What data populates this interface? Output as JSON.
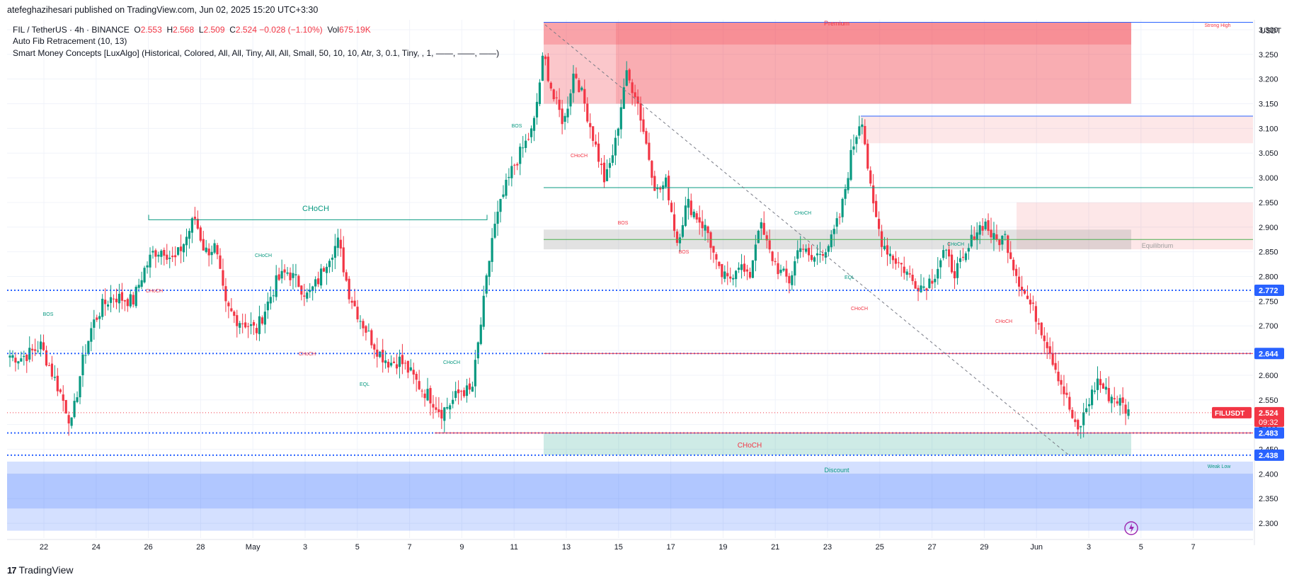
{
  "header": {
    "publisher": "atefeghazihesari published on TradingView.com, Jun 02, 2025 15:20 UTC+3:30",
    "symbol": "FIL / TetherUS · 4h · BINANCE",
    "o_label": "O",
    "o": "2.553",
    "h_label": "H",
    "h": "2.568",
    "l_label": "L",
    "l": "2.509",
    "c_label": "C",
    "c": "2.524",
    "change": "−0.028 (−1.10%)",
    "vol_label": "Vol",
    "vol": "675.19K",
    "indicator1": "Auto Fib Retracement (10, 13)",
    "indicator2": "Smart Money Concepts [LuxAlgo] (Historical, Colored, All, All, Tiny, All, All, Small, 50, 10, 10, Atr, 3, 0.1, Tiny, , 1, ——, ——, ——)"
  },
  "brand": {
    "logo": "17",
    "name": "TradingView"
  },
  "colors": {
    "bull": "#089981",
    "bear": "#f23645",
    "blue": "#2962ff",
    "premium": "#f23645",
    "discount": "#089981",
    "weakLowZone": "#2962ff"
  },
  "chart_data": {
    "type": "candlestick",
    "currency": "USDT",
    "y_range": [
      2.27,
      3.32
    ],
    "y_ticks": [
      "3.300",
      "3.250",
      "3.200",
      "3.150",
      "3.100",
      "3.050",
      "3.000",
      "2.950",
      "2.900",
      "2.850",
      "2.800",
      "2.750",
      "2.700",
      "2.650",
      "2.600",
      "2.550",
      "2.500",
      "2.450",
      "2.400",
      "2.350",
      "2.300"
    ],
    "x_ticks": [
      "22",
      "24",
      "26",
      "28",
      "May",
      "3",
      "5",
      "7",
      "9",
      "11",
      "13",
      "15",
      "17",
      "19",
      "21",
      "23",
      "25",
      "27",
      "29",
      "Jun",
      "3",
      "5",
      "7"
    ],
    "bars_per_day": 6,
    "price_labels": [
      {
        "label": "2.772",
        "value": 2.772
      },
      {
        "label": "2.644",
        "value": 2.644
      },
      {
        "label": "2.524",
        "value": 2.524,
        "sub": "09:32",
        "symbol": "FILUSDT"
      },
      {
        "label": "2.483",
        "value": 2.483
      },
      {
        "label": "2.438",
        "value": 2.438
      }
    ],
    "zone_labels": [
      "Premium",
      "Discount",
      "Strong High",
      "Weak Low",
      "Equilibrium"
    ],
    "structure_labels": [
      "CHoCH",
      "CHoCH",
      "CHoCH",
      "CHoCH",
      "CHoCH",
      "CHoCH",
      "CHoCH",
      "CHoCH",
      "CHoCH",
      "CHoCH",
      "BOS",
      "BOS",
      "BOS",
      "BOS",
      "EQL",
      "EQL"
    ],
    "series_anchors": [
      [
        2.64,
        2.63,
        2.65,
        2.68,
        2.62,
        2.55,
        2.48,
        2.6,
        2.68,
        2.72,
        2.77,
        2.76,
        2.74,
        2.8,
        2.84,
        2.86,
        2.84,
        2.88,
        2.93,
        2.84,
        2.87,
        2.75,
        2.72,
        2.7,
        2.68,
        2.73,
        2.78,
        2.8,
        2.78,
        2.75,
        2.78,
        2.85,
        2.88,
        2.78,
        2.73,
        2.69,
        2.64,
        2.62,
        2.63,
        2.61,
        2.58,
        2.55,
        2.52,
        2.55,
        2.58,
        2.56,
        2.7,
        2.86,
        2.95,
        3.02,
        3.05,
        3.08,
        3.26,
        3.17,
        3.1,
        3.23,
        3.16,
        3.08,
        2.98,
        3.08,
        3.22,
        3.18,
        3.08,
        2.98,
        3.0,
        2.88,
        2.96,
        2.93,
        2.9,
        2.82,
        2.8,
        2.84,
        2.8,
        2.92,
        2.86,
        2.82,
        2.78,
        2.88,
        2.84,
        2.86,
        2.88,
        2.92,
        3.04,
        3.12,
        2.96,
        2.88,
        2.85,
        2.83,
        2.8,
        2.79,
        2.81,
        2.86,
        2.82,
        2.84,
        2.9,
        2.92,
        2.88,
        2.89,
        2.82,
        2.77,
        2.73,
        2.68,
        2.62,
        2.56,
        2.47,
        2.55,
        2.6,
        2.55,
        2.56,
        2.53
      ],
      [
        2.64,
        2.635,
        2.645,
        2.66,
        2.61,
        2.56,
        2.5,
        2.62,
        2.7,
        2.74,
        2.76,
        2.755,
        2.75,
        2.81,
        2.85,
        2.855,
        2.83,
        2.87,
        2.92,
        2.85,
        2.86,
        2.74,
        2.715,
        2.705,
        2.69,
        2.74,
        2.79,
        2.81,
        2.79,
        2.76,
        2.79,
        2.84,
        2.87,
        2.77,
        2.72,
        2.68,
        2.645,
        2.625,
        2.63,
        2.605,
        2.575,
        2.555,
        2.525,
        2.545,
        2.57,
        2.565,
        2.72,
        2.88,
        2.96,
        3.02,
        3.06,
        3.1,
        3.25,
        3.16,
        3.11,
        3.22,
        3.15,
        3.07,
        2.99,
        3.07,
        3.21,
        3.17,
        3.07,
        2.97,
        2.99,
        2.87,
        2.95,
        2.92,
        2.89,
        2.81,
        2.79,
        2.83,
        2.79,
        2.91,
        2.85,
        2.81,
        2.79,
        2.87,
        2.83,
        2.85,
        2.87,
        2.93,
        3.05,
        3.13,
        2.95,
        2.87,
        2.84,
        2.82,
        2.79,
        2.78,
        2.8,
        2.85,
        2.81,
        2.83,
        2.89,
        2.91,
        2.87,
        2.88,
        2.81,
        2.76,
        2.72,
        2.67,
        2.61,
        2.55,
        2.48,
        2.54,
        2.59,
        2.56,
        2.55,
        2.524
      ]
    ]
  }
}
